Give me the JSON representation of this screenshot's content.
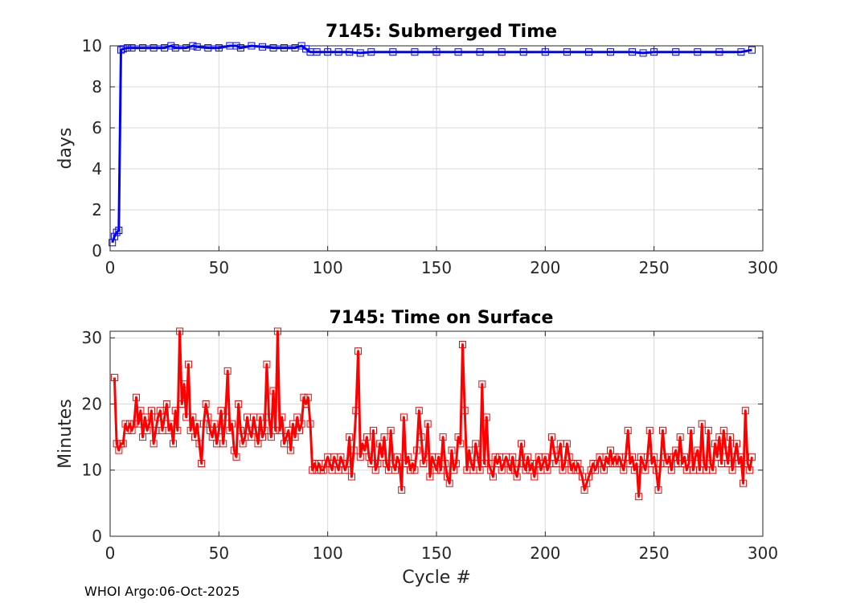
{
  "footer": "WHOI Argo:06-Oct-2025",
  "colors": {
    "submerged": "#0000ff",
    "surface": "#ff0000",
    "grid": "#d9d9d9",
    "axis": "#262626"
  },
  "chart_data": [
    {
      "type": "line",
      "title": "7145: Submerged Time",
      "xlabel": "",
      "ylabel": "days",
      "xlim": [
        0,
        300
      ],
      "ylim": [
        0,
        10
      ],
      "xticks": [
        0,
        50,
        100,
        150,
        200,
        250,
        300
      ],
      "yticks": [
        0,
        2,
        4,
        6,
        8,
        10
      ],
      "grid": true,
      "marker": "square",
      "color": "#0000ff",
      "points": [
        [
          1,
          0.4
        ],
        [
          2,
          0.7
        ],
        [
          3,
          0.9
        ],
        [
          4,
          1.0
        ],
        [
          5,
          9.8
        ],
        [
          6,
          9.85
        ],
        [
          8,
          9.9
        ],
        [
          10,
          9.9
        ],
        [
          15,
          9.9
        ],
        [
          20,
          9.9
        ],
        [
          25,
          9.9
        ],
        [
          28,
          10.0
        ],
        [
          30,
          9.9
        ],
        [
          35,
          9.9
        ],
        [
          38,
          10.0
        ],
        [
          40,
          9.95
        ],
        [
          45,
          9.9
        ],
        [
          50,
          9.9
        ],
        [
          55,
          10.0
        ],
        [
          58,
          10.0
        ],
        [
          60,
          9.9
        ],
        [
          65,
          10.0
        ],
        [
          70,
          9.95
        ],
        [
          75,
          9.9
        ],
        [
          80,
          9.9
        ],
        [
          85,
          9.9
        ],
        [
          88,
          10.0
        ],
        [
          90,
          9.85
        ],
        [
          92,
          9.7
        ],
        [
          95,
          9.7
        ],
        [
          100,
          9.7
        ],
        [
          105,
          9.7
        ],
        [
          110,
          9.7
        ],
        [
          115,
          9.65
        ],
        [
          120,
          9.7
        ],
        [
          130,
          9.7
        ],
        [
          140,
          9.7
        ],
        [
          150,
          9.7
        ],
        [
          160,
          9.7
        ],
        [
          170,
          9.7
        ],
        [
          180,
          9.7
        ],
        [
          190,
          9.7
        ],
        [
          200,
          9.7
        ],
        [
          210,
          9.7
        ],
        [
          220,
          9.7
        ],
        [
          230,
          9.7
        ],
        [
          240,
          9.7
        ],
        [
          245,
          9.65
        ],
        [
          250,
          9.7
        ],
        [
          260,
          9.7
        ],
        [
          270,
          9.7
        ],
        [
          280,
          9.7
        ],
        [
          290,
          9.7
        ],
        [
          295,
          9.8
        ]
      ]
    },
    {
      "type": "line",
      "title": "7145: Time on Surface",
      "xlabel": "Cycle #",
      "ylabel": "Minutes",
      "xlim": [
        0,
        300
      ],
      "ylim": [
        0,
        31
      ],
      "xticks": [
        0,
        50,
        100,
        150,
        200,
        250,
        300
      ],
      "yticks": [
        0,
        10,
        20,
        30
      ],
      "grid": true,
      "marker": "square",
      "color": "#ff0000",
      "points": [
        [
          2,
          24
        ],
        [
          3,
          14
        ],
        [
          4,
          13
        ],
        [
          5,
          14
        ],
        [
          6,
          14
        ],
        [
          7,
          17
        ],
        [
          8,
          16
        ],
        [
          9,
          17
        ],
        [
          10,
          16
        ],
        [
          11,
          17
        ],
        [
          12,
          21
        ],
        [
          13,
          17
        ],
        [
          14,
          19
        ],
        [
          15,
          15
        ],
        [
          16,
          18
        ],
        [
          17,
          16
        ],
        [
          18,
          17
        ],
        [
          19,
          19
        ],
        [
          20,
          14
        ],
        [
          21,
          16
        ],
        [
          22,
          18
        ],
        [
          23,
          19
        ],
        [
          24,
          16
        ],
        [
          25,
          18
        ],
        [
          26,
          20
        ],
        [
          27,
          16
        ],
        [
          28,
          17
        ],
        [
          29,
          14
        ],
        [
          30,
          19
        ],
        [
          31,
          16
        ],
        [
          32,
          31
        ],
        [
          33,
          20
        ],
        [
          34,
          23
        ],
        [
          35,
          18
        ],
        [
          36,
          26
        ],
        [
          37,
          16
        ],
        [
          38,
          18
        ],
        [
          39,
          15
        ],
        [
          40,
          17
        ],
        [
          41,
          14
        ],
        [
          42,
          11
        ],
        [
          43,
          17
        ],
        [
          44,
          20
        ],
        [
          45,
          18
        ],
        [
          46,
          16
        ],
        [
          47,
          15
        ],
        [
          48,
          17
        ],
        [
          49,
          14
        ],
        [
          50,
          16
        ],
        [
          51,
          19
        ],
        [
          52,
          14
        ],
        [
          53,
          18
        ],
        [
          54,
          25
        ],
        [
          55,
          16
        ],
        [
          56,
          17
        ],
        [
          57,
          13
        ],
        [
          58,
          12
        ],
        [
          59,
          20
        ],
        [
          60,
          16
        ],
        [
          61,
          14
        ],
        [
          62,
          15
        ],
        [
          63,
          18
        ],
        [
          64,
          16
        ],
        [
          65,
          15
        ],
        [
          66,
          18
        ],
        [
          67,
          16
        ],
        [
          68,
          14
        ],
        [
          69,
          18
        ],
        [
          70,
          15
        ],
        [
          71,
          16
        ],
        [
          72,
          26
        ],
        [
          73,
          18
        ],
        [
          74,
          15
        ],
        [
          75,
          22
        ],
        [
          76,
          16
        ],
        [
          77,
          31
        ],
        [
          78,
          16
        ],
        [
          79,
          18
        ],
        [
          80,
          14
        ],
        [
          81,
          15
        ],
        [
          82,
          16
        ],
        [
          83,
          13
        ],
        [
          84,
          17
        ],
        [
          85,
          15
        ],
        [
          86,
          18
        ],
        [
          87,
          16
        ],
        [
          88,
          17
        ],
        [
          89,
          21
        ],
        [
          90,
          20
        ],
        [
          91,
          21
        ],
        [
          92,
          17
        ],
        [
          93,
          10
        ],
        [
          94,
          11
        ],
        [
          95,
          10
        ],
        [
          96,
          11
        ],
        [
          97,
          10
        ],
        [
          98,
          10
        ],
        [
          99,
          11
        ],
        [
          100,
          12
        ],
        [
          101,
          11
        ],
        [
          102,
          10
        ],
        [
          103,
          12
        ],
        [
          104,
          11
        ],
        [
          105,
          10
        ],
        [
          106,
          12
        ],
        [
          107,
          11
        ],
        [
          108,
          10
        ],
        [
          109,
          11
        ],
        [
          110,
          15
        ],
        [
          111,
          9
        ],
        [
          112,
          13
        ],
        [
          113,
          19
        ],
        [
          114,
          28
        ],
        [
          115,
          12
        ],
        [
          116,
          14
        ],
        [
          117,
          13
        ],
        [
          118,
          15
        ],
        [
          119,
          12
        ],
        [
          120,
          11
        ],
        [
          121,
          16
        ],
        [
          122,
          10
        ],
        [
          123,
          11
        ],
        [
          124,
          14
        ],
        [
          125,
          12
        ],
        [
          126,
          15
        ],
        [
          127,
          11
        ],
        [
          128,
          10
        ],
        [
          129,
          16
        ],
        [
          130,
          11
        ],
        [
          131,
          10
        ],
        [
          132,
          12
        ],
        [
          133,
          11
        ],
        [
          134,
          7
        ],
        [
          135,
          18
        ],
        [
          136,
          11
        ],
        [
          137,
          12
        ],
        [
          138,
          10
        ],
        [
          139,
          11
        ],
        [
          140,
          10
        ],
        [
          141,
          13
        ],
        [
          142,
          19
        ],
        [
          143,
          15
        ],
        [
          144,
          11
        ],
        [
          145,
          12
        ],
        [
          146,
          17
        ],
        [
          147,
          9
        ],
        [
          148,
          12
        ],
        [
          149,
          11
        ],
        [
          150,
          10
        ],
        [
          151,
          12
        ],
        [
          152,
          10
        ],
        [
          153,
          15
        ],
        [
          154,
          11
        ],
        [
          155,
          9
        ],
        [
          156,
          8
        ],
        [
          157,
          13
        ],
        [
          158,
          10
        ],
        [
          159,
          11
        ],
        [
          160,
          15
        ],
        [
          161,
          14
        ],
        [
          162,
          29
        ],
        [
          163,
          19
        ],
        [
          164,
          10
        ],
        [
          165,
          13
        ],
        [
          166,
          11
        ],
        [
          167,
          10
        ],
        [
          168,
          14
        ],
        [
          169,
          12
        ],
        [
          170,
          10
        ],
        [
          171,
          23
        ],
        [
          172,
          11
        ],
        [
          173,
          18
        ],
        [
          174,
          11
        ],
        [
          175,
          10
        ],
        [
          176,
          9
        ],
        [
          177,
          12
        ],
        [
          178,
          11
        ],
        [
          179,
          12
        ],
        [
          180,
          10
        ],
        [
          181,
          11
        ],
        [
          182,
          12
        ],
        [
          183,
          11
        ],
        [
          184,
          10
        ],
        [
          185,
          12
        ],
        [
          186,
          10
        ],
        [
          187,
          9
        ],
        [
          188,
          11
        ],
        [
          189,
          14
        ],
        [
          190,
          11
        ],
        [
          191,
          10
        ],
        [
          192,
          12
        ],
        [
          193,
          10
        ],
        [
          194,
          11
        ],
        [
          195,
          9
        ],
        [
          196,
          11
        ],
        [
          197,
          12
        ],
        [
          198,
          10
        ],
        [
          199,
          11
        ],
        [
          200,
          12
        ],
        [
          201,
          10
        ],
        [
          202,
          11
        ],
        [
          203,
          15
        ],
        [
          204,
          13
        ],
        [
          205,
          11
        ],
        [
          206,
          12
        ],
        [
          207,
          14
        ],
        [
          208,
          10
        ],
        [
          209,
          11
        ],
        [
          210,
          14
        ],
        [
          211,
          12
        ],
        [
          212,
          10
        ],
        [
          213,
          11
        ],
        [
          214,
          10
        ],
        [
          215,
          11
        ],
        [
          216,
          10
        ],
        [
          217,
          9
        ],
        [
          218,
          7
        ],
        [
          219,
          8
        ],
        [
          220,
          9
        ],
        [
          221,
          10
        ],
        [
          222,
          11
        ],
        [
          223,
          10
        ],
        [
          224,
          11
        ],
        [
          225,
          12
        ],
        [
          226,
          11
        ],
        [
          227,
          10
        ],
        [
          228,
          12
        ],
        [
          229,
          11
        ],
        [
          230,
          13
        ],
        [
          231,
          11
        ],
        [
          232,
          12
        ],
        [
          233,
          11
        ],
        [
          234,
          12
        ],
        [
          235,
          11
        ],
        [
          236,
          10
        ],
        [
          237,
          12
        ],
        [
          238,
          16
        ],
        [
          239,
          11
        ],
        [
          240,
          12
        ],
        [
          241,
          10
        ],
        [
          242,
          11
        ],
        [
          243,
          6
        ],
        [
          244,
          12
        ],
        [
          245,
          11
        ],
        [
          246,
          10
        ],
        [
          247,
          12
        ],
        [
          248,
          16
        ],
        [
          249,
          11
        ],
        [
          250,
          12
        ],
        [
          251,
          10
        ],
        [
          252,
          7
        ],
        [
          253,
          11
        ],
        [
          254,
          16
        ],
        [
          255,
          12
        ],
        [
          256,
          11
        ],
        [
          257,
          12
        ],
        [
          258,
          10
        ],
        [
          259,
          12
        ],
        [
          260,
          13
        ],
        [
          261,
          11
        ],
        [
          262,
          15
        ],
        [
          263,
          11
        ],
        [
          264,
          12
        ],
        [
          265,
          10
        ],
        [
          266,
          11
        ],
        [
          267,
          16
        ],
        [
          268,
          10
        ],
        [
          269,
          12
        ],
        [
          270,
          13
        ],
        [
          271,
          10
        ],
        [
          272,
          17
        ],
        [
          273,
          11
        ],
        [
          274,
          10
        ],
        [
          275,
          16
        ],
        [
          276,
          11
        ],
        [
          277,
          10
        ],
        [
          278,
          14
        ],
        [
          279,
          12
        ],
        [
          280,
          15
        ],
        [
          281,
          11
        ],
        [
          282,
          16
        ],
        [
          283,
          13
        ],
        [
          284,
          11
        ],
        [
          285,
          15
        ],
        [
          286,
          10
        ],
        [
          287,
          12
        ],
        [
          288,
          14
        ],
        [
          289,
          11
        ],
        [
          290,
          12
        ],
        [
          291,
          8
        ],
        [
          292,
          19
        ],
        [
          293,
          11
        ],
        [
          294,
          10
        ],
        [
          295,
          12
        ]
      ]
    }
  ]
}
